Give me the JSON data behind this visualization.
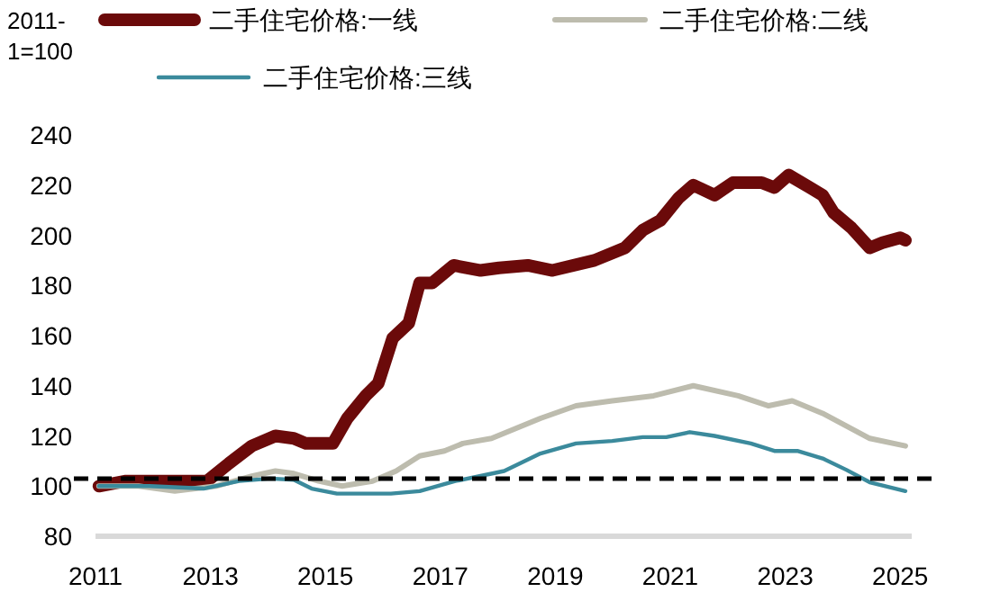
{
  "chart_data": {
    "type": "line",
    "ylabel": "2011-1=100",
    "xlim": [
      2011,
      2025.2
    ],
    "ylim": [
      80,
      240
    ],
    "xticks": [
      2011,
      2013,
      2015,
      2017,
      2019,
      2021,
      2023,
      2025
    ],
    "yticks": [
      80,
      100,
      120,
      140,
      160,
      180,
      200,
      220,
      240
    ],
    "grid": false,
    "legend": "top",
    "marker": "none",
    "line_style": "solid",
    "ref_lines": [
      {
        "axis": "y",
        "value": 103,
        "color": "#000000",
        "line_style": "dashed"
      }
    ],
    "series": [
      {
        "name": "二手住宅价格:一线",
        "color": "#6b0a0a",
        "x": [
          2011.06,
          2011.53,
          2012.06,
          2012.94,
          2013.32,
          2013.72,
          2014.13,
          2014.45,
          2014.66,
          2015.13,
          2015.38,
          2015.7,
          2015.92,
          2016.17,
          2016.45,
          2016.64,
          2016.86,
          2017.23,
          2017.7,
          2018.02,
          2018.52,
          2018.95,
          2019.68,
          2020.21,
          2020.52,
          2020.83,
          2021.15,
          2021.4,
          2021.77,
          2022.09,
          2022.59,
          2022.81,
          2023.06,
          2023.43,
          2023.65,
          2023.84,
          2024.15,
          2024.47,
          2024.69,
          2025.0,
          2025.09
        ],
        "values": [
          100,
          102,
          102,
          102,
          109,
          116,
          120,
          119,
          117,
          117,
          127,
          136,
          141,
          159,
          165,
          181,
          181,
          188,
          186,
          187,
          188,
          186,
          190,
          195,
          202,
          206,
          215,
          220,
          216,
          221,
          221,
          219,
          224,
          219,
          216,
          209,
          203,
          195,
          197,
          199,
          198
        ]
      },
      {
        "name": "二手住宅价格:二线",
        "color": "#bdbcae",
        "x": [
          2011.06,
          2011.75,
          2012.38,
          2013.1,
          2013.72,
          2014.13,
          2014.45,
          2014.88,
          2015.29,
          2015.82,
          2016.23,
          2016.64,
          2017.07,
          2017.39,
          2017.89,
          2018.74,
          2019.36,
          2019.99,
          2020.71,
          2021.4,
          2022.18,
          2022.71,
          2023.12,
          2023.65,
          2024.06,
          2024.47,
          2025.09
        ],
        "values": [
          100,
          100,
          98,
          100,
          104,
          106,
          105,
          102,
          100,
          102,
          106,
          112,
          114,
          117,
          119,
          127,
          132,
          134,
          136,
          140,
          136,
          132,
          134,
          129,
          124,
          119,
          116
        ]
      },
      {
        "name": "二手住宅价格:三线",
        "color": "#3b8a9c",
        "x": [
          2011.06,
          2011.94,
          2012.88,
          2013.5,
          2014.04,
          2014.45,
          2014.76,
          2015.2,
          2016.14,
          2016.64,
          2017.26,
          2018.11,
          2018.74,
          2019.36,
          2019.99,
          2020.52,
          2020.93,
          2021.34,
          2021.77,
          2022.4,
          2022.81,
          2023.21,
          2023.65,
          2024.06,
          2024.47,
          2025.09
        ],
        "values": [
          100,
          100,
          99,
          102,
          103,
          102.5,
          99,
          97,
          97,
          98,
          102,
          106,
          113,
          117,
          118,
          119.5,
          119.5,
          121.5,
          120,
          117,
          114,
          114,
          111,
          106.5,
          101.5,
          98
        ]
      }
    ]
  }
}
